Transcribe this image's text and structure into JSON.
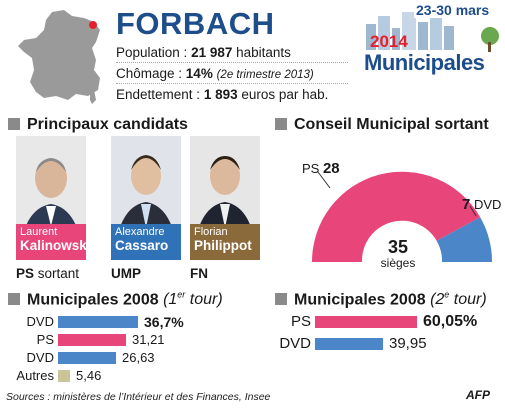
{
  "header": {
    "city": "FORBACH",
    "population_label": "Population : ",
    "population_value": "21 987",
    "population_unit": " habitants",
    "chomage_label": "Chômage : ",
    "chomage_value": "14%",
    "chomage_note": "(2e trimestre 2013)",
    "endettement_label": "Endettement : ",
    "endettement_value": "1 893",
    "endettement_unit": " euros par hab."
  },
  "badge": {
    "dates": "23-30 mars",
    "year": "2014",
    "word": "Municipales"
  },
  "candidates_section": {
    "title": "Principaux candidats",
    "candidates": [
      {
        "first": "Laurent",
        "last": "Kalinowski",
        "party": "PS",
        "party_note": " sortant",
        "color": "#e8457a"
      },
      {
        "first": "Alexandre",
        "last": "Cassaro",
        "party": "UMP",
        "party_note": "",
        "color": "#2f72b8"
      },
      {
        "first": "Florian",
        "last": "Philippot",
        "party": "FN",
        "party_note": "",
        "color": "#8a6a3a"
      }
    ]
  },
  "council": {
    "title": "Conseil Municipal sortant",
    "ps_label": "PS",
    "ps_seats": "28",
    "dvd_label": "DVD",
    "dvd_seats": "7",
    "total": "35",
    "total_label": "sièges"
  },
  "colors": {
    "ps": "#e8457a",
    "dvd": "#4a86c8",
    "autres": "#c9c49a",
    "brand": "#1d4d8a"
  },
  "results_2008_t1": {
    "title_a": "Municipales 2008 ",
    "title_b": "(1",
    "title_sup": "er",
    "title_c": " tour)",
    "rows": [
      {
        "label": "DVD",
        "value": "36,7%",
        "pct": 36.7,
        "bold": true,
        "color": "#4a86c8"
      },
      {
        "label": "PS",
        "value": "31,21",
        "pct": 31.21,
        "bold": false,
        "color": "#e8457a"
      },
      {
        "label": "DVD",
        "value": "26,63",
        "pct": 26.63,
        "bold": false,
        "color": "#4a86c8"
      },
      {
        "label": "Autres",
        "value": "5,46",
        "pct": 5.46,
        "bold": false,
        "color": "#c9c49a"
      }
    ]
  },
  "results_2008_t2": {
    "title_a": "Municipales 2008 ",
    "title_b": "(2",
    "title_sup": "e",
    "title_c": " tour)",
    "rows": [
      {
        "label": "PS",
        "value": "60,05%",
        "pct": 60.05,
        "bold": true,
        "color": "#e8457a"
      },
      {
        "label": "DVD",
        "value": "39,95",
        "pct": 39.95,
        "bold": false,
        "color": "#4a86c8"
      }
    ]
  },
  "footer": {
    "sources": "Sources : ministères de l’Intérieur et des Finances, Insee",
    "agency": "AFP"
  }
}
